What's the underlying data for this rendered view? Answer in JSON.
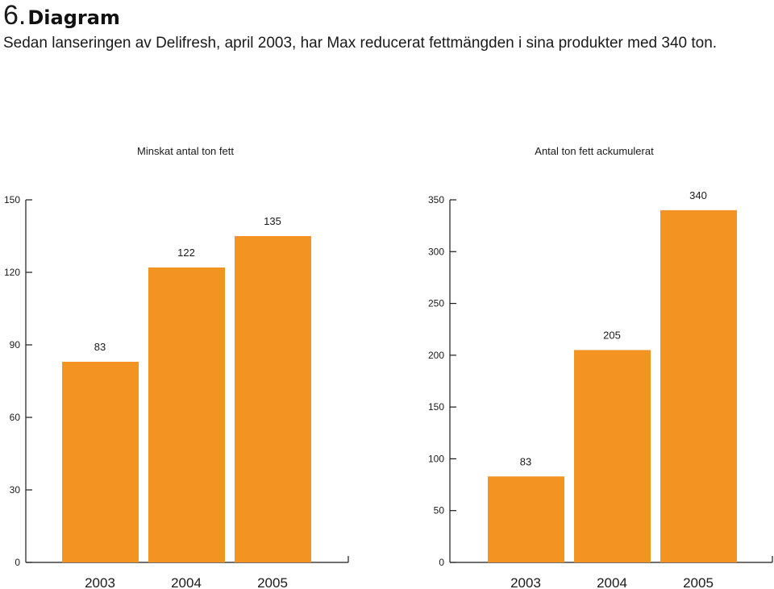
{
  "header": {
    "number": "6.",
    "title": "Diagram",
    "subtitle": "Sedan lanseringen av Delifresh, april 2003, har Max reducerat fettmängden i sina produkter med 340 ton."
  },
  "colors": {
    "bar": "#f39321",
    "axis": "#1a1a1a",
    "text": "#1a1a1a"
  },
  "chart_data": [
    {
      "type": "bar",
      "title": "Minskat antal ton fett",
      "categories": [
        "2003",
        "2004",
        "2005"
      ],
      "values": [
        83,
        122,
        135
      ],
      "value_labels": [
        "83",
        "122",
        "135"
      ],
      "ylim": [
        0,
        150
      ],
      "yticks": [
        0,
        30,
        60,
        90,
        120,
        150
      ],
      "ytick_labels": [
        "0",
        "30",
        "60",
        "90",
        "120",
        "150"
      ],
      "grid": false
    },
    {
      "type": "bar",
      "title": "Antal ton fett ackumulerat",
      "categories": [
        "2003",
        "2004",
        "2005"
      ],
      "values": [
        83,
        205,
        340
      ],
      "value_labels": [
        "83",
        "205",
        "340"
      ],
      "ylim": [
        0,
        350
      ],
      "yticks": [
        0,
        50,
        100,
        150,
        200,
        250,
        300,
        350
      ],
      "ytick_labels": [
        "0",
        "50",
        "100",
        "150",
        "200",
        "250",
        "300",
        "350"
      ],
      "grid": false
    }
  ]
}
